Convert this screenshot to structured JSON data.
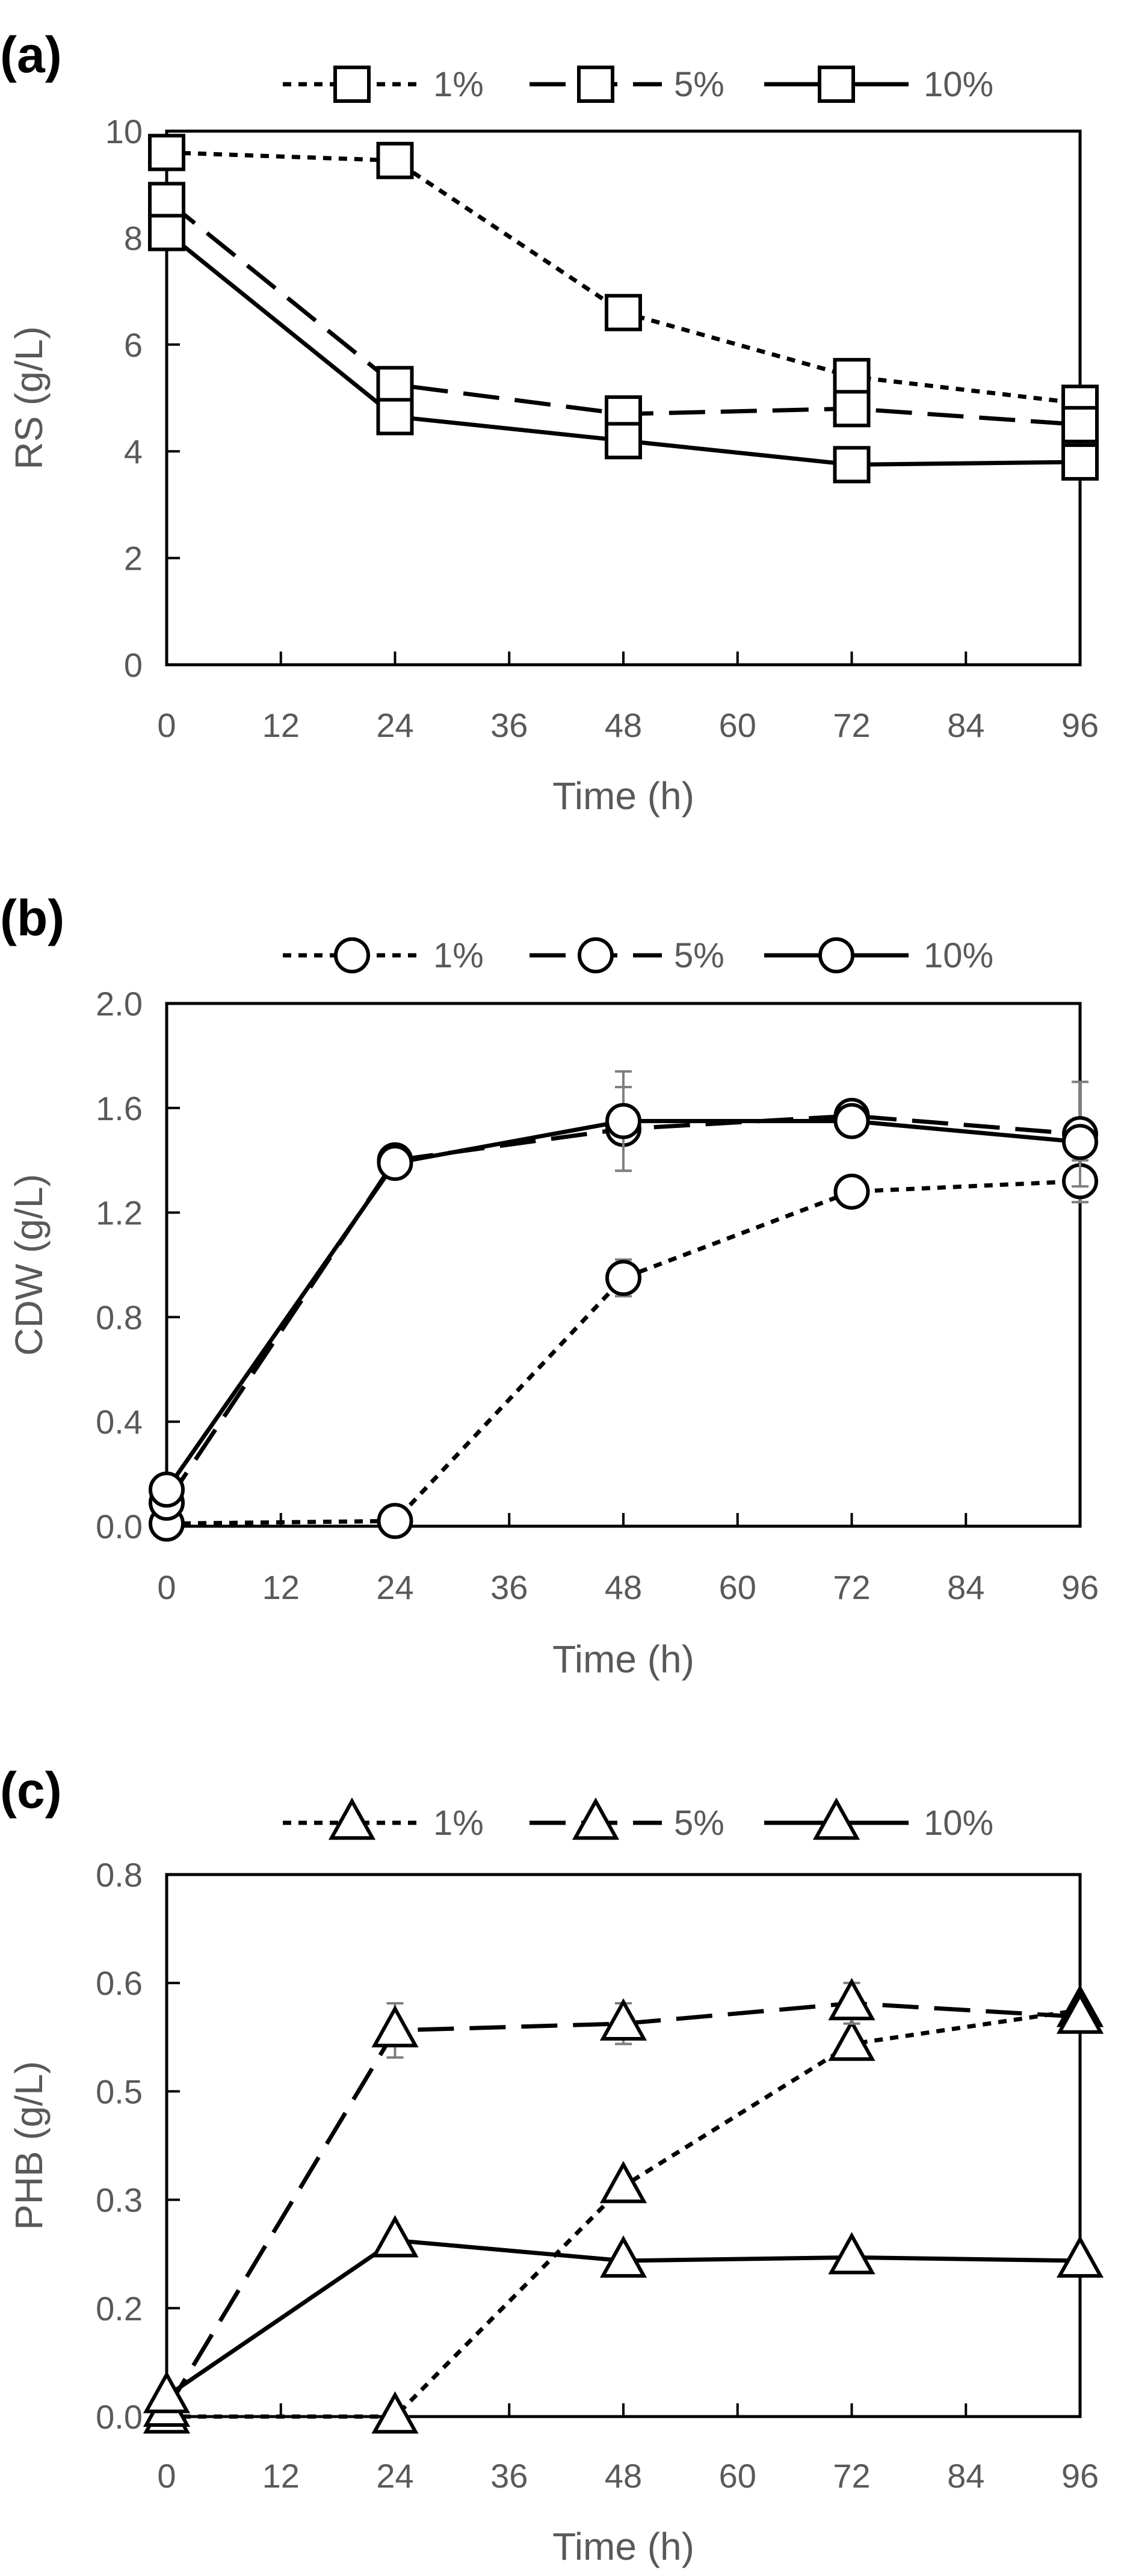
{
  "chart_data": [
    {
      "panel": "(a)",
      "type": "line",
      "marker": "square",
      "xlabel": "Time (h)",
      "ylabel": "RS (g/L)",
      "xlim": [
        0,
        96
      ],
      "ylim": [
        0,
        10
      ],
      "xticks": [
        "0",
        "12",
        "24",
        "36",
        "48",
        "60",
        "72",
        "84",
        "96"
      ],
      "yticks": [
        "0",
        "2",
        "4",
        "6",
        "8",
        "10"
      ],
      "legend_position": "top",
      "x": [
        0,
        24,
        48,
        72,
        96
      ],
      "series": [
        {
          "name": "1%",
          "style": "dotted",
          "values": [
            9.6,
            9.45,
            6.6,
            5.4,
            4.9
          ],
          "errors": [
            0,
            0,
            0,
            0,
            0
          ]
        },
        {
          "name": "5%",
          "style": "dashed",
          "values": [
            8.7,
            5.25,
            4.7,
            4.8,
            4.5
          ],
          "errors": [
            0,
            0,
            0,
            0,
            0
          ]
        },
        {
          "name": "10%",
          "style": "solid",
          "values": [
            8.1,
            4.65,
            4.2,
            3.75,
            3.8
          ],
          "errors": [
            0,
            0,
            0,
            0,
            0
          ]
        }
      ]
    },
    {
      "panel": "(b)",
      "type": "line",
      "marker": "circle",
      "xlabel": "Time (h)",
      "ylabel": "CDW (g/L)",
      "xlim": [
        0,
        96
      ],
      "ylim": [
        0,
        2.0
      ],
      "xticks": [
        "0",
        "12",
        "24",
        "36",
        "48",
        "60",
        "72",
        "84",
        "96"
      ],
      "yticks": [
        "0.0",
        "0.4",
        "0.8",
        "1.2",
        "1.6",
        "2.0"
      ],
      "legend_position": "top",
      "x": [
        0,
        24,
        48,
        72,
        96
      ],
      "series": [
        {
          "name": "1%",
          "style": "dotted",
          "values": [
            0.01,
            0.02,
            0.95,
            1.28,
            1.32
          ],
          "errors": [
            0,
            0,
            0.07,
            0,
            0.08
          ]
        },
        {
          "name": "5%",
          "style": "dashed",
          "values": [
            0.09,
            1.4,
            1.52,
            1.57,
            1.5
          ],
          "errors": [
            0,
            0,
            0.16,
            0,
            0.2
          ]
        },
        {
          "name": "10%",
          "style": "solid",
          "values": [
            0.14,
            1.39,
            1.55,
            1.55,
            1.47
          ],
          "errors": [
            0,
            0,
            0.19,
            0,
            0
          ]
        }
      ]
    },
    {
      "panel": "(c)",
      "type": "line",
      "marker": "triangle",
      "xlabel": "Time (h)",
      "ylabel": "PHB (g/L)",
      "xlim": [
        0,
        96
      ],
      "ylim": [
        0,
        0.8
      ],
      "xticks": [
        "0",
        "12",
        "24",
        "36",
        "48",
        "60",
        "72",
        "84",
        "96"
      ],
      "yticks": [
        "0.0",
        "0.2",
        "0.3",
        "0.5",
        "0.6",
        "0.8"
      ],
      "legend_position": "top",
      "x": [
        0,
        24,
        48,
        72,
        96
      ],
      "series": [
        {
          "name": "1%",
          "style": "dotted",
          "values": [
            0.0,
            0.0,
            0.34,
            0.55,
            0.6
          ],
          "errors": [
            0,
            0,
            0,
            0,
            0
          ]
        },
        {
          "name": "5%",
          "style": "dashed",
          "values": [
            0.01,
            0.57,
            0.58,
            0.61,
            0.59
          ],
          "errors": [
            0,
            0.04,
            0.03,
            0.03,
            0
          ]
        },
        {
          "name": "10%",
          "style": "solid",
          "values": [
            0.03,
            0.26,
            0.23,
            0.235,
            0.23
          ],
          "errors": [
            0,
            0,
            0,
            0,
            0.015
          ]
        }
      ]
    }
  ]
}
